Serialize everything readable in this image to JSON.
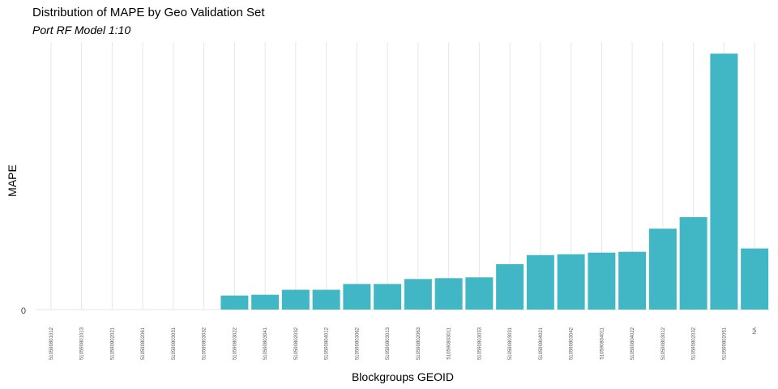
{
  "chart_data": {
    "type": "bar",
    "title": "Distribution of MAPE by Geo Validation Set",
    "subtitle": "Port RF Model 1:10",
    "xlabel": "Blockgroups GEOID",
    "ylabel": "MAPE",
    "y_tick_labels": [
      "0"
    ],
    "bar_color": "#41b6c4",
    "grid": "vertical-major",
    "categories": [
      "510590801012",
      "510590801013",
      "510590802021",
      "510590802061",
      "510590803031",
      "510590803032",
      "510590803022",
      "510590803041",
      "510590802032",
      "510590804012",
      "510590803062",
      "510590803013",
      "510590802063",
      "510590803011",
      "510590803033",
      "510590803031",
      "510590804021",
      "510590803042",
      "510590804011",
      "510590804022",
      "510590803012",
      "510590802032",
      "510590802051",
      "NA"
    ],
    "values": [
      0,
      0,
      0,
      0,
      0,
      0,
      17,
      18,
      24,
      24,
      31,
      31,
      37,
      38,
      39,
      55,
      66,
      67,
      69,
      70,
      98,
      112,
      310,
      74
    ],
    "ylim": [
      0,
      320
    ]
  }
}
